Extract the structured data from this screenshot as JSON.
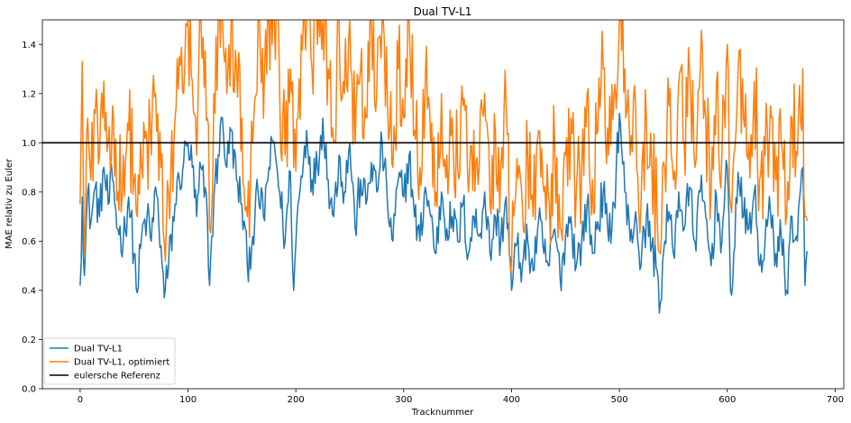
{
  "chart_data": {
    "type": "line",
    "title": "Dual TV-L1",
    "xlabel": "Tracknummer",
    "ylabel": "MAE relativ zu Euler",
    "xlim": [
      -35,
      708
    ],
    "ylim": [
      0,
      1.5
    ],
    "xticks": [
      0,
      100,
      200,
      300,
      400,
      500,
      600,
      700
    ],
    "yticks": [
      0.0,
      0.2,
      0.4,
      0.6,
      0.8,
      1.0,
      1.2,
      1.4
    ],
    "grid": false,
    "legend_position": "lower-left",
    "n_points": 675,
    "reference_line": {
      "name": "eulersche Referenz",
      "y": 1.0,
      "color": "#000000"
    },
    "series": [
      {
        "name": "Dual TV-L1",
        "color": "#1f77b4",
        "anchors": [
          [
            0,
            0.42
          ],
          [
            2,
            0.78
          ],
          [
            4,
            0.46
          ],
          [
            7,
            0.8
          ],
          [
            10,
            0.68
          ],
          [
            14,
            0.82
          ],
          [
            18,
            0.7
          ],
          [
            22,
            0.9
          ],
          [
            26,
            0.75
          ],
          [
            30,
            0.85
          ],
          [
            35,
            0.65
          ],
          [
            40,
            0.6
          ],
          [
            45,
            0.78
          ],
          [
            50,
            0.55
          ],
          [
            53,
            0.39
          ],
          [
            57,
            0.62
          ],
          [
            62,
            0.7
          ],
          [
            66,
            0.6
          ],
          [
            70,
            0.82
          ],
          [
            75,
            0.58
          ],
          [
            78,
            0.37
          ],
          [
            82,
            0.5
          ],
          [
            88,
            0.75
          ],
          [
            92,
            0.85
          ],
          [
            96,
            0.92
          ],
          [
            100,
            1.0
          ],
          [
            104,
            0.9
          ],
          [
            108,
            0.7
          ],
          [
            112,
            0.9
          ],
          [
            118,
            0.7
          ],
          [
            120,
            0.42
          ],
          [
            124,
            0.78
          ],
          [
            128,
            0.95
          ],
          [
            132,
            1.1
          ],
          [
            136,
            0.9
          ],
          [
            140,
            1.05
          ],
          [
            145,
            0.85
          ],
          [
            150,
            0.75
          ],
          [
            155,
            0.5
          ],
          [
            160,
            0.62
          ],
          [
            165,
            0.8
          ],
          [
            170,
            0.7
          ],
          [
            175,
            0.9
          ],
          [
            180,
            1.0
          ],
          [
            185,
            0.8
          ],
          [
            190,
            0.6
          ],
          [
            195,
            0.88
          ],
          [
            198,
            0.4
          ],
          [
            202,
            0.75
          ],
          [
            207,
            0.92
          ],
          [
            210,
            1.05
          ],
          [
            215,
            0.85
          ],
          [
            220,
            0.9
          ],
          [
            225,
            1.1
          ],
          [
            230,
            0.85
          ],
          [
            235,
            0.7
          ],
          [
            240,
            0.95
          ],
          [
            245,
            0.8
          ],
          [
            250,
            1.0
          ],
          [
            255,
            0.65
          ],
          [
            260,
            0.85
          ],
          [
            265,
            0.75
          ],
          [
            270,
            0.92
          ],
          [
            275,
            0.8
          ],
          [
            280,
            1.0
          ],
          [
            285,
            0.75
          ],
          [
            290,
            0.6
          ],
          [
            295,
            0.85
          ],
          [
            300,
            0.78
          ],
          [
            305,
            0.95
          ],
          [
            310,
            0.7
          ],
          [
            315,
            0.6
          ],
          [
            320,
            0.82
          ],
          [
            325,
            0.7
          ],
          [
            330,
            0.55
          ],
          [
            335,
            0.8
          ],
          [
            340,
            0.65
          ],
          [
            345,
            0.7
          ],
          [
            350,
            0.6
          ],
          [
            355,
            0.75
          ],
          [
            360,
            0.55
          ],
          [
            365,
            0.7
          ],
          [
            370,
            0.62
          ],
          [
            375,
            0.8
          ],
          [
            380,
            0.55
          ],
          [
            385,
            0.7
          ],
          [
            390,
            0.6
          ],
          [
            395,
            0.78
          ],
          [
            400,
            0.4
          ],
          [
            404,
            0.58
          ],
          [
            410,
            0.5
          ],
          [
            415,
            0.6
          ],
          [
            420,
            0.48
          ],
          [
            425,
            0.68
          ],
          [
            430,
            0.55
          ],
          [
            435,
            0.5
          ],
          [
            440,
            0.65
          ],
          [
            445,
            0.45
          ],
          [
            450,
            0.62
          ],
          [
            455,
            0.7
          ],
          [
            460,
            0.5
          ],
          [
            465,
            0.6
          ],
          [
            470,
            0.75
          ],
          [
            475,
            0.55
          ],
          [
            480,
            0.68
          ],
          [
            485,
            0.8
          ],
          [
            490,
            0.6
          ],
          [
            495,
            0.75
          ],
          [
            500,
            1.12
          ],
          [
            505,
            0.8
          ],
          [
            510,
            0.6
          ],
          [
            515,
            0.72
          ],
          [
            520,
            0.5
          ],
          [
            525,
            0.7
          ],
          [
            530,
            0.58
          ],
          [
            535,
            0.48
          ],
          [
            538,
            0.35
          ],
          [
            542,
            0.6
          ],
          [
            546,
            0.72
          ],
          [
            550,
            0.55
          ],
          [
            555,
            0.8
          ],
          [
            560,
            0.65
          ],
          [
            565,
            0.82
          ],
          [
            570,
            0.6
          ],
          [
            575,
            0.8
          ],
          [
            580,
            0.7
          ],
          [
            585,
            0.5
          ],
          [
            590,
            0.78
          ],
          [
            595,
            0.6
          ],
          [
            600,
            0.9
          ],
          [
            603,
            0.4
          ],
          [
            606,
            0.55
          ],
          [
            610,
            0.88
          ],
          [
            615,
            0.7
          ],
          [
            620,
            0.65
          ],
          [
            625,
            0.8
          ],
          [
            630,
            0.5
          ],
          [
            635,
            0.6
          ],
          [
            640,
            0.72
          ],
          [
            645,
            0.55
          ],
          [
            650,
            0.62
          ],
          [
            655,
            0.4
          ],
          [
            660,
            0.7
          ],
          [
            665,
            0.6
          ],
          [
            670,
            0.9
          ],
          [
            672,
            0.42
          ],
          [
            675,
            0.56
          ]
        ]
      },
      {
        "name": "Dual TV-L1, optimiert",
        "color": "#ff7f0e",
        "anchors": [
          [
            0,
            0.75
          ],
          [
            2,
            1.33
          ],
          [
            4,
            0.55
          ],
          [
            7,
            1.1
          ],
          [
            10,
            0.85
          ],
          [
            14,
            1.12
          ],
          [
            18,
            0.95
          ],
          [
            22,
            1.25
          ],
          [
            26,
            1.0
          ],
          [
            30,
            1.15
          ],
          [
            35,
            0.8
          ],
          [
            40,
            0.95
          ],
          [
            45,
            1.05
          ],
          [
            50,
            0.85
          ],
          [
            53,
            0.7
          ],
          [
            57,
            0.9
          ],
          [
            62,
            1.0
          ],
          [
            66,
            0.95
          ],
          [
            70,
            1.2
          ],
          [
            75,
            0.9
          ],
          [
            78,
            0.6
          ],
          [
            82,
            0.8
          ],
          [
            88,
            1.1
          ],
          [
            92,
            1.35
          ],
          [
            96,
            1.2
          ],
          [
            100,
            1.5
          ],
          [
            104,
            1.25
          ],
          [
            108,
            0.95
          ],
          [
            112,
            1.5
          ],
          [
            118,
            1.1
          ],
          [
            120,
            0.65
          ],
          [
            124,
            1.2
          ],
          [
            128,
            1.5
          ],
          [
            132,
            1.5
          ],
          [
            136,
            1.2
          ],
          [
            140,
            1.5
          ],
          [
            145,
            1.3
          ],
          [
            150,
            1.1
          ],
          [
            155,
            0.7
          ],
          [
            160,
            1.0
          ],
          [
            165,
            1.5
          ],
          [
            170,
            1.1
          ],
          [
            175,
            1.5
          ],
          [
            180,
            1.5
          ],
          [
            185,
            1.2
          ],
          [
            190,
            0.95
          ],
          [
            195,
            1.3
          ],
          [
            198,
            0.9
          ],
          [
            202,
            1.1
          ],
          [
            207,
            1.5
          ],
          [
            210,
            1.5
          ],
          [
            215,
            1.3
          ],
          [
            220,
            1.4
          ],
          [
            225,
            1.5
          ],
          [
            230,
            1.3
          ],
          [
            235,
            1.0
          ],
          [
            240,
            1.5
          ],
          [
            245,
            1.2
          ],
          [
            250,
            1.5
          ],
          [
            255,
            1.0
          ],
          [
            260,
            1.3
          ],
          [
            265,
            1.1
          ],
          [
            270,
            1.5
          ],
          [
            275,
            1.2
          ],
          [
            280,
            1.5
          ],
          [
            285,
            1.15
          ],
          [
            290,
            0.9
          ],
          [
            295,
            1.3
          ],
          [
            300,
            1.1
          ],
          [
            305,
            1.5
          ],
          [
            310,
            1.05
          ],
          [
            315,
            0.9
          ],
          [
            320,
            1.25
          ],
          [
            325,
            1.0
          ],
          [
            330,
            0.8
          ],
          [
            335,
            1.2
          ],
          [
            340,
            0.95
          ],
          [
            345,
            1.1
          ],
          [
            350,
            0.9
          ],
          [
            355,
            1.15
          ],
          [
            360,
            0.8
          ],
          [
            365,
            1.05
          ],
          [
            370,
            0.9
          ],
          [
            375,
            1.2
          ],
          [
            380,
            0.75
          ],
          [
            385,
            1.05
          ],
          [
            390,
            0.9
          ],
          [
            395,
            1.15
          ],
          [
            400,
            0.5
          ],
          [
            404,
            0.8
          ],
          [
            410,
            0.75
          ],
          [
            415,
            0.95
          ],
          [
            420,
            0.7
          ],
          [
            425,
            1.05
          ],
          [
            430,
            0.8
          ],
          [
            435,
            0.75
          ],
          [
            440,
            1.0
          ],
          [
            445,
            0.65
          ],
          [
            450,
            0.95
          ],
          [
            455,
            1.1
          ],
          [
            460,
            0.8
          ],
          [
            465,
            0.9
          ],
          [
            470,
            1.2
          ],
          [
            475,
            0.85
          ],
          [
            480,
            1.05
          ],
          [
            485,
            1.3
          ],
          [
            490,
            0.95
          ],
          [
            495,
            1.2
          ],
          [
            500,
            1.5
          ],
          [
            505,
            1.3
          ],
          [
            510,
            0.95
          ],
          [
            515,
            1.15
          ],
          [
            520,
            0.75
          ],
          [
            525,
            1.1
          ],
          [
            530,
            0.9
          ],
          [
            535,
            0.7
          ],
          [
            538,
            0.55
          ],
          [
            542,
            0.9
          ],
          [
            546,
            1.15
          ],
          [
            550,
            0.85
          ],
          [
            555,
            1.25
          ],
          [
            560,
            1.0
          ],
          [
            565,
            1.3
          ],
          [
            570,
            0.9
          ],
          [
            575,
            1.3
          ],
          [
            580,
            1.1
          ],
          [
            585,
            0.8
          ],
          [
            590,
            1.25
          ],
          [
            595,
            0.95
          ],
          [
            600,
            1.4
          ],
          [
            603,
            0.75
          ],
          [
            606,
            0.95
          ],
          [
            610,
            1.3
          ],
          [
            615,
            1.1
          ],
          [
            620,
            1.0
          ],
          [
            625,
            1.25
          ],
          [
            630,
            0.85
          ],
          [
            635,
            0.95
          ],
          [
            640,
            1.15
          ],
          [
            645,
            0.85
          ],
          [
            650,
            1.0
          ],
          [
            655,
            0.7
          ],
          [
            660,
            1.1
          ],
          [
            665,
            0.95
          ],
          [
            670,
            1.3
          ],
          [
            672,
            0.7
          ],
          [
            675,
            0.9
          ]
        ]
      }
    ]
  }
}
